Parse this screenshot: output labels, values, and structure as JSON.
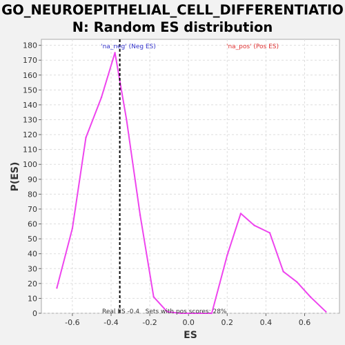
{
  "title_line1": "GO_NEUROEPITHELIAL_CELL_DIFFERENTIATIO",
  "title_line2": "N: Random ES distribution",
  "chart_data": {
    "type": "line",
    "title": "GO_NEUROEPITHELIAL_CELL_DIFFERENTIATION: Random ES distribution",
    "xlabel": "ES",
    "ylabel": "P(ES)",
    "xlim": [
      -0.76,
      0.78
    ],
    "ylim": [
      0,
      184
    ],
    "xticks": [
      -0.6,
      -0.4,
      -0.2,
      0.0,
      0.2,
      0.4,
      0.6
    ],
    "xtick_labels": [
      "-0.6",
      "-0.4",
      "-0.2",
      "0.0",
      "0.2",
      "0.4",
      "0.6"
    ],
    "yticks": [
      0,
      10,
      20,
      30,
      40,
      50,
      60,
      70,
      80,
      90,
      100,
      110,
      120,
      130,
      140,
      150,
      160,
      170,
      180
    ],
    "grid": true,
    "series": [
      {
        "color": "#ee44ee",
        "x": [
          -0.68,
          -0.6,
          -0.53,
          -0.45,
          -0.38,
          -0.32,
          -0.25,
          -0.18,
          -0.11,
          -0.04,
          0.03,
          0.12,
          0.2,
          0.27,
          0.34,
          0.42,
          0.49,
          0.56,
          0.63,
          0.71
        ],
        "y": [
          17,
          57,
          118,
          145,
          175,
          130,
          66,
          11,
          1,
          0,
          0,
          0,
          39,
          67,
          59,
          54,
          28,
          21,
          11,
          1
        ]
      }
    ],
    "real_es": -0.355,
    "legend": {
      "neg": "'na_neg' (Neg ES)",
      "pos": "'na_pos' (Pos ES)"
    },
    "annotation": "Real ES -0.4   Sets with pos scores: 28%"
  },
  "colors": {
    "plot_bg": "#ffffff",
    "page_bg": "#f2f2f2",
    "grid": "#dddddd",
    "line": "#ee44ee",
    "real_es_line": "#000000"
  }
}
